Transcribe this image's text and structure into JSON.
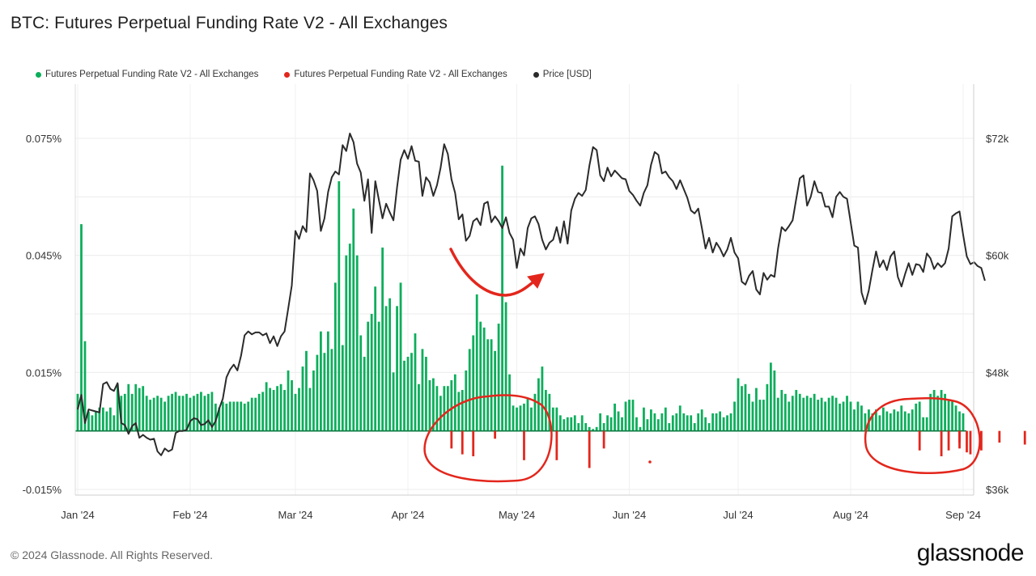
{
  "title": "BTC: Futures Perpetual Funding Rate V2 - All Exchanges",
  "legend": [
    {
      "label": "Futures Perpetual Funding Rate V2 - All Exchanges",
      "color": "#0cae5b"
    },
    {
      "label": "Futures Perpetual Funding Rate V2 - All Exchanges",
      "color": "#e3261c"
    },
    {
      "label": "Price [USD]",
      "color": "#2b2b2b"
    }
  ],
  "footer": "© 2024 Glassnode. All Rights Reserved.",
  "brand": "glassnode",
  "chart_data": {
    "type": "bar+line",
    "x_ticks": [
      "Jan '24",
      "Feb '24",
      "Mar '24",
      "Apr '24",
      "May '24",
      "Jun '24",
      "Jul '24",
      "Aug '24",
      "Sep '24"
    ],
    "y_left_ticks": [
      "0.075%",
      "0.045%",
      "0.015%",
      "-0.015%"
    ],
    "y_left_values": [
      0.075,
      0.045,
      0.015,
      -0.015
    ],
    "y_right_ticks": [
      "$72k",
      "$60k",
      "$48k",
      "$36k"
    ],
    "y_right_values": [
      72000,
      60000,
      48000,
      36000
    ],
    "ylim_left": [
      -0.015,
      0.075
    ],
    "ylim_right": [
      36000,
      72000
    ],
    "series": [
      {
        "name": "Futures Perpetual Funding Rate V2 - All Exchanges (positive)",
        "color": "#0cae5b",
        "start_day": 0,
        "values": [
          0.0095,
          0.053,
          0.023,
          0.005,
          0.004,
          0.005,
          0.006,
          0.006,
          0.005,
          0.006,
          0.004,
          0.012,
          0.009,
          0.0095,
          0.012,
          0.0095,
          0.012,
          0.011,
          0.0115,
          0.009,
          0.008,
          0.0085,
          0.009,
          0.0085,
          0.0075,
          0.009,
          0.0095,
          0.01,
          0.009,
          0.009,
          0.0095,
          0.0085,
          0.009,
          0.0095,
          0.01,
          0.009,
          0.0095,
          0.01,
          0.007,
          0.006,
          0.0075,
          0.007,
          0.0075,
          0.0075,
          0.0075,
          0.0075,
          0.007,
          0.0075,
          0.0085,
          0.0085,
          0.0095,
          0.01,
          0.0125,
          0.011,
          0.0105,
          0.0115,
          0.012,
          0.0105,
          0.0155,
          0.013,
          0.0095,
          0.011,
          0.0165,
          0.0205,
          0.011,
          0.0155,
          0.0195,
          0.0255,
          0.02,
          0.0255,
          0.021,
          0.038,
          0.064,
          0.022,
          0.045,
          0.048,
          0.057,
          0.045,
          0.0245,
          0.019,
          0.028,
          0.03,
          0.037,
          0.028,
          0.047,
          0.032,
          0.034,
          0.015,
          0.032,
          0.038,
          0.018,
          0.019,
          0.02,
          0.025,
          0.012,
          0.021,
          0.019,
          0.013,
          0.0135,
          0.0115,
          0.009,
          0.0115,
          0.0115,
          0.013,
          0.0145,
          0.01,
          0.0105,
          0.0155,
          0.021,
          0.0245,
          0.035,
          0.028,
          0.0265,
          0.0235,
          0.0235,
          0.0205,
          0.0275,
          0.068,
          0.033,
          0.0145,
          0.0065,
          0.006,
          0.0065,
          0.007,
          0.0085,
          0.006,
          0.0095,
          0.0135,
          0.0165,
          0.0105,
          0.0095,
          0.006,
          0.006,
          0.004,
          0.003,
          0.0035,
          0.0035,
          0.004,
          0.002,
          0.004,
          0.002,
          0.001,
          0.0005,
          0.001,
          0.0045,
          0.002,
          0.004,
          0.0035,
          0.007,
          0.005,
          0.0035,
          0.0075,
          0.008,
          0.008,
          0.0035,
          0.001,
          0.006,
          0.003,
          0.0055,
          0.0045,
          0.003,
          0.0045,
          0.006,
          0.002,
          0.004,
          0.0045,
          0.0065,
          0.0045,
          0.004,
          0.004,
          0.002,
          0.0045,
          0.0055,
          0.0035,
          0.002,
          0.0045,
          0.0045,
          0.005,
          0.0035,
          0.004,
          0.0045,
          0.0075,
          0.0135,
          0.0115,
          0.012,
          0.0095,
          0.0075,
          0.011,
          0.008,
          0.008,
          0.012,
          0.0175,
          0.0155,
          0.0085,
          0.0105,
          0.0095,
          0.0075,
          0.009,
          0.0105,
          0.0095,
          0.0085,
          0.009,
          0.0085,
          0.0095,
          0.008,
          0.0085,
          0.0075,
          0.0085,
          0.009,
          0.0085,
          0.007,
          0.0075,
          0.009,
          0.0075,
          0.0055,
          0.0075,
          0.0065,
          0.0045,
          0.0055,
          0.0045,
          0.0055,
          0.004,
          0.006,
          0.005,
          0.0045,
          0.0055,
          0.005,
          0.0065,
          0.005,
          0.0045,
          0.0055,
          0.007,
          0.0075,
          0.0035,
          0.0035,
          0.0095,
          0.0105,
          0.009,
          0.0105,
          0.0095,
          0.008,
          0.0075,
          0.0065,
          0.005,
          0.0045,
          0.004,
          0.0055,
          0.006,
          0.0055,
          0.0045,
          0.0055,
          0.005,
          0.007,
          0.008,
          0.0065,
          0.006,
          0.0055,
          0.0045,
          0.0045,
          0.0055,
          0.004,
          0.0045,
          0.003,
          0.0065,
          0.0045,
          0.0035,
          0.0075,
          0.0095,
          0.0085,
          0.0075,
          0.0095,
          0.0065,
          0.007,
          0.0065,
          0.0085,
          0.0065,
          0.008,
          0.0085,
          0.0065,
          0.009,
          0.007,
          0.0065,
          0.0095,
          0.0075,
          0.0055,
          0.0075,
          0.005,
          0.0065,
          0.0045,
          0.0045,
          0.0045,
          0.004,
          0.0055,
          0.003,
          0.0055,
          0.0045,
          0.0045,
          0.004,
          0.0045,
          0.0035,
          0.0045,
          0.004,
          0.0055,
          0.0035,
          0.0045,
          0.003,
          0.0055
        ]
      },
      {
        "name": "Futures Perpetual Funding Rate V2 - All Exchanges (negative)",
        "color": "#e3261c",
        "points": [
          [
            103,
            -0.0045
          ],
          [
            106,
            -0.006
          ],
          [
            109,
            -0.0065
          ],
          [
            115,
            -0.002
          ],
          [
            123,
            -0.0075
          ],
          [
            132,
            -0.0075
          ],
          [
            141,
            -0.0095
          ],
          [
            145,
            -0.0045
          ],
          [
            232,
            -0.005
          ],
          [
            238,
            -0.0065
          ],
          [
            240,
            -0.005
          ],
          [
            243,
            -0.003
          ],
          [
            245,
            -0.0055
          ],
          [
            246,
            -0.006
          ],
          [
            249,
            -0.005
          ],
          [
            254,
            -0.003
          ],
          [
            261,
            -0.0035
          ],
          [
            243,
            -0.0045
          ]
        ]
      },
      {
        "name": "Price [USD]",
        "color": "#2b2b2b",
        "start_day": 0,
        "values": [
          44200,
          45700,
          42800,
          44200,
          44100,
          44000,
          43900,
          46800,
          47000,
          46300,
          46100,
          46900,
          42800,
          42600,
          41700,
          42500,
          42800,
          41300,
          41600,
          41300,
          41100,
          41200,
          39900,
          39500,
          40200,
          39900,
          40100,
          41800,
          42000,
          42000,
          42100,
          43000,
          43300,
          43200,
          42600,
          42700,
          43100,
          42400,
          43000,
          44300,
          45300,
          47500,
          48300,
          48800,
          48200,
          49700,
          51800,
          52200,
          51900,
          52100,
          52100,
          51800,
          52000,
          51000,
          51700,
          50700,
          51700,
          52200,
          54500,
          56900,
          62500,
          61700,
          63000,
          62400,
          68400,
          67700,
          66600,
          62500,
          63800,
          66500,
          68000,
          68600,
          68300,
          71300,
          70700,
          72500,
          71600,
          69400,
          68500,
          65600,
          67800,
          62300,
          67600,
          65700,
          63800,
          65300,
          64400,
          63600,
          67000,
          69800,
          70800,
          69900,
          71200,
          69700,
          69600,
          66100,
          68000,
          67500,
          66100,
          67200,
          69000,
          71400,
          70400,
          67800,
          66400,
          63700,
          64200,
          61500,
          62000,
          63500,
          63800,
          63100,
          65300,
          65500,
          63400,
          64000,
          63500,
          62800,
          63900,
          62300,
          61600,
          58700,
          60700,
          60000,
          62800,
          63800,
          64000,
          63200,
          61600,
          60600,
          61300,
          61600,
          62900,
          61300,
          63500,
          61200,
          64600,
          65800,
          66400,
          66100,
          66700,
          69200,
          71100,
          70800,
          68200,
          67600,
          69000,
          68100,
          68700,
          68300,
          67900,
          67800,
          66600,
          66200,
          65600,
          65100,
          66400,
          67200,
          69300,
          70600,
          70300,
          68400,
          68600,
          68000,
          67600,
          66800,
          67700,
          66800,
          65900,
          64600,
          64300,
          64800,
          62800,
          60700,
          61800,
          60300,
          61300,
          60700,
          59900,
          60600,
          61800,
          60300,
          59700,
          57300,
          57000,
          57900,
          58400,
          56500,
          56000,
          58200,
          57500,
          58000,
          57800,
          60700,
          62900,
          62500,
          63000,
          63600,
          65800,
          67900,
          68200,
          65100,
          66000,
          67600,
          66500,
          66400,
          65000,
          65000,
          63900,
          66000,
          66500,
          66000,
          65800,
          63400,
          61000,
          60800,
          56200,
          55000,
          56400,
          58500,
          60400,
          58800,
          59500,
          58500,
          59900,
          60400,
          57800,
          56800,
          58100,
          59200,
          58000,
          59100,
          59000,
          58300,
          60200,
          59700,
          58600,
          59200,
          58800,
          59200,
          60700,
          64000,
          64300,
          64500,
          62100,
          59900,
          59100,
          59300,
          58900,
          58700,
          57400
        ]
      }
    ],
    "xlabel": "",
    "ylabel_left": "",
    "ylabel_right": ""
  },
  "annotations": [
    {
      "kind": "circle",
      "color": "#e3261c",
      "label": "negative funding cluster April-May"
    },
    {
      "kind": "arrow",
      "color": "#e3261c",
      "label": "price rebound arrow"
    },
    {
      "kind": "circle",
      "color": "#e3261c",
      "label": "negative funding cluster August"
    }
  ]
}
